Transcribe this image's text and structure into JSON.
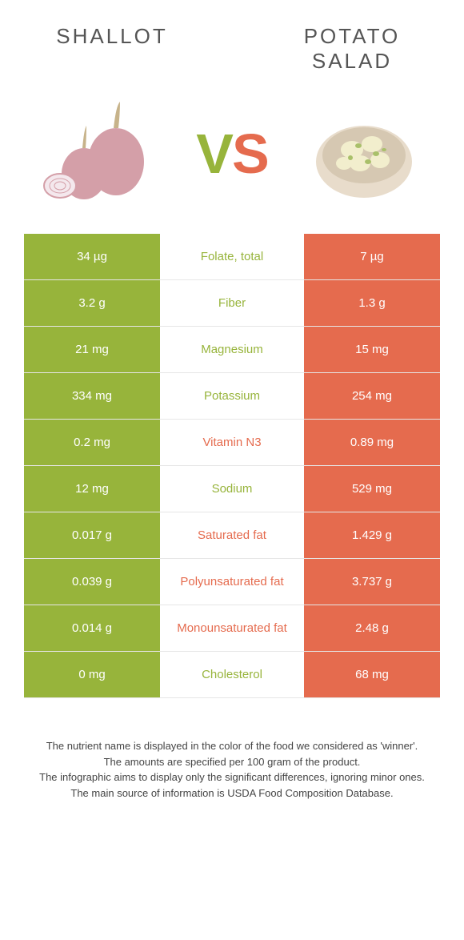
{
  "titles": {
    "left": "SHALLOT",
    "right": "POTATO SALAD"
  },
  "vs": {
    "v": "V",
    "s": "S"
  },
  "colors": {
    "left": "#97b43b",
    "right": "#e56b4e",
    "bg": "#ffffff",
    "border": "#e6e6e6"
  },
  "rows": [
    {
      "left": "34 µg",
      "label": "Folate, total",
      "right": "7 µg",
      "winner": "left"
    },
    {
      "left": "3.2 g",
      "label": "Fiber",
      "right": "1.3 g",
      "winner": "left"
    },
    {
      "left": "21 mg",
      "label": "Magnesium",
      "right": "15 mg",
      "winner": "left"
    },
    {
      "left": "334 mg",
      "label": "Potassium",
      "right": "254 mg",
      "winner": "left"
    },
    {
      "left": "0.2 mg",
      "label": "Vitamin N3",
      "right": "0.89 mg",
      "winner": "right"
    },
    {
      "left": "12 mg",
      "label": "Sodium",
      "right": "529 mg",
      "winner": "left"
    },
    {
      "left": "0.017 g",
      "label": "Saturated fat",
      "right": "1.429 g",
      "winner": "right"
    },
    {
      "left": "0.039 g",
      "label": "Polyunsaturated fat",
      "right": "3.737 g",
      "winner": "right"
    },
    {
      "left": "0.014 g",
      "label": "Monounsaturated fat",
      "right": "2.48 g",
      "winner": "right"
    },
    {
      "left": "0 mg",
      "label": "Cholesterol",
      "right": "68 mg",
      "winner": "left"
    }
  ],
  "footer": {
    "l1": "The nutrient name is displayed in the color of the food we considered as 'winner'.",
    "l2": "The amounts are specified per 100 gram of the product.",
    "l3": "The infographic aims to display only the significant differences, ignoring minor ones.",
    "l4": "The main source of information is USDA Food Composition Database."
  }
}
